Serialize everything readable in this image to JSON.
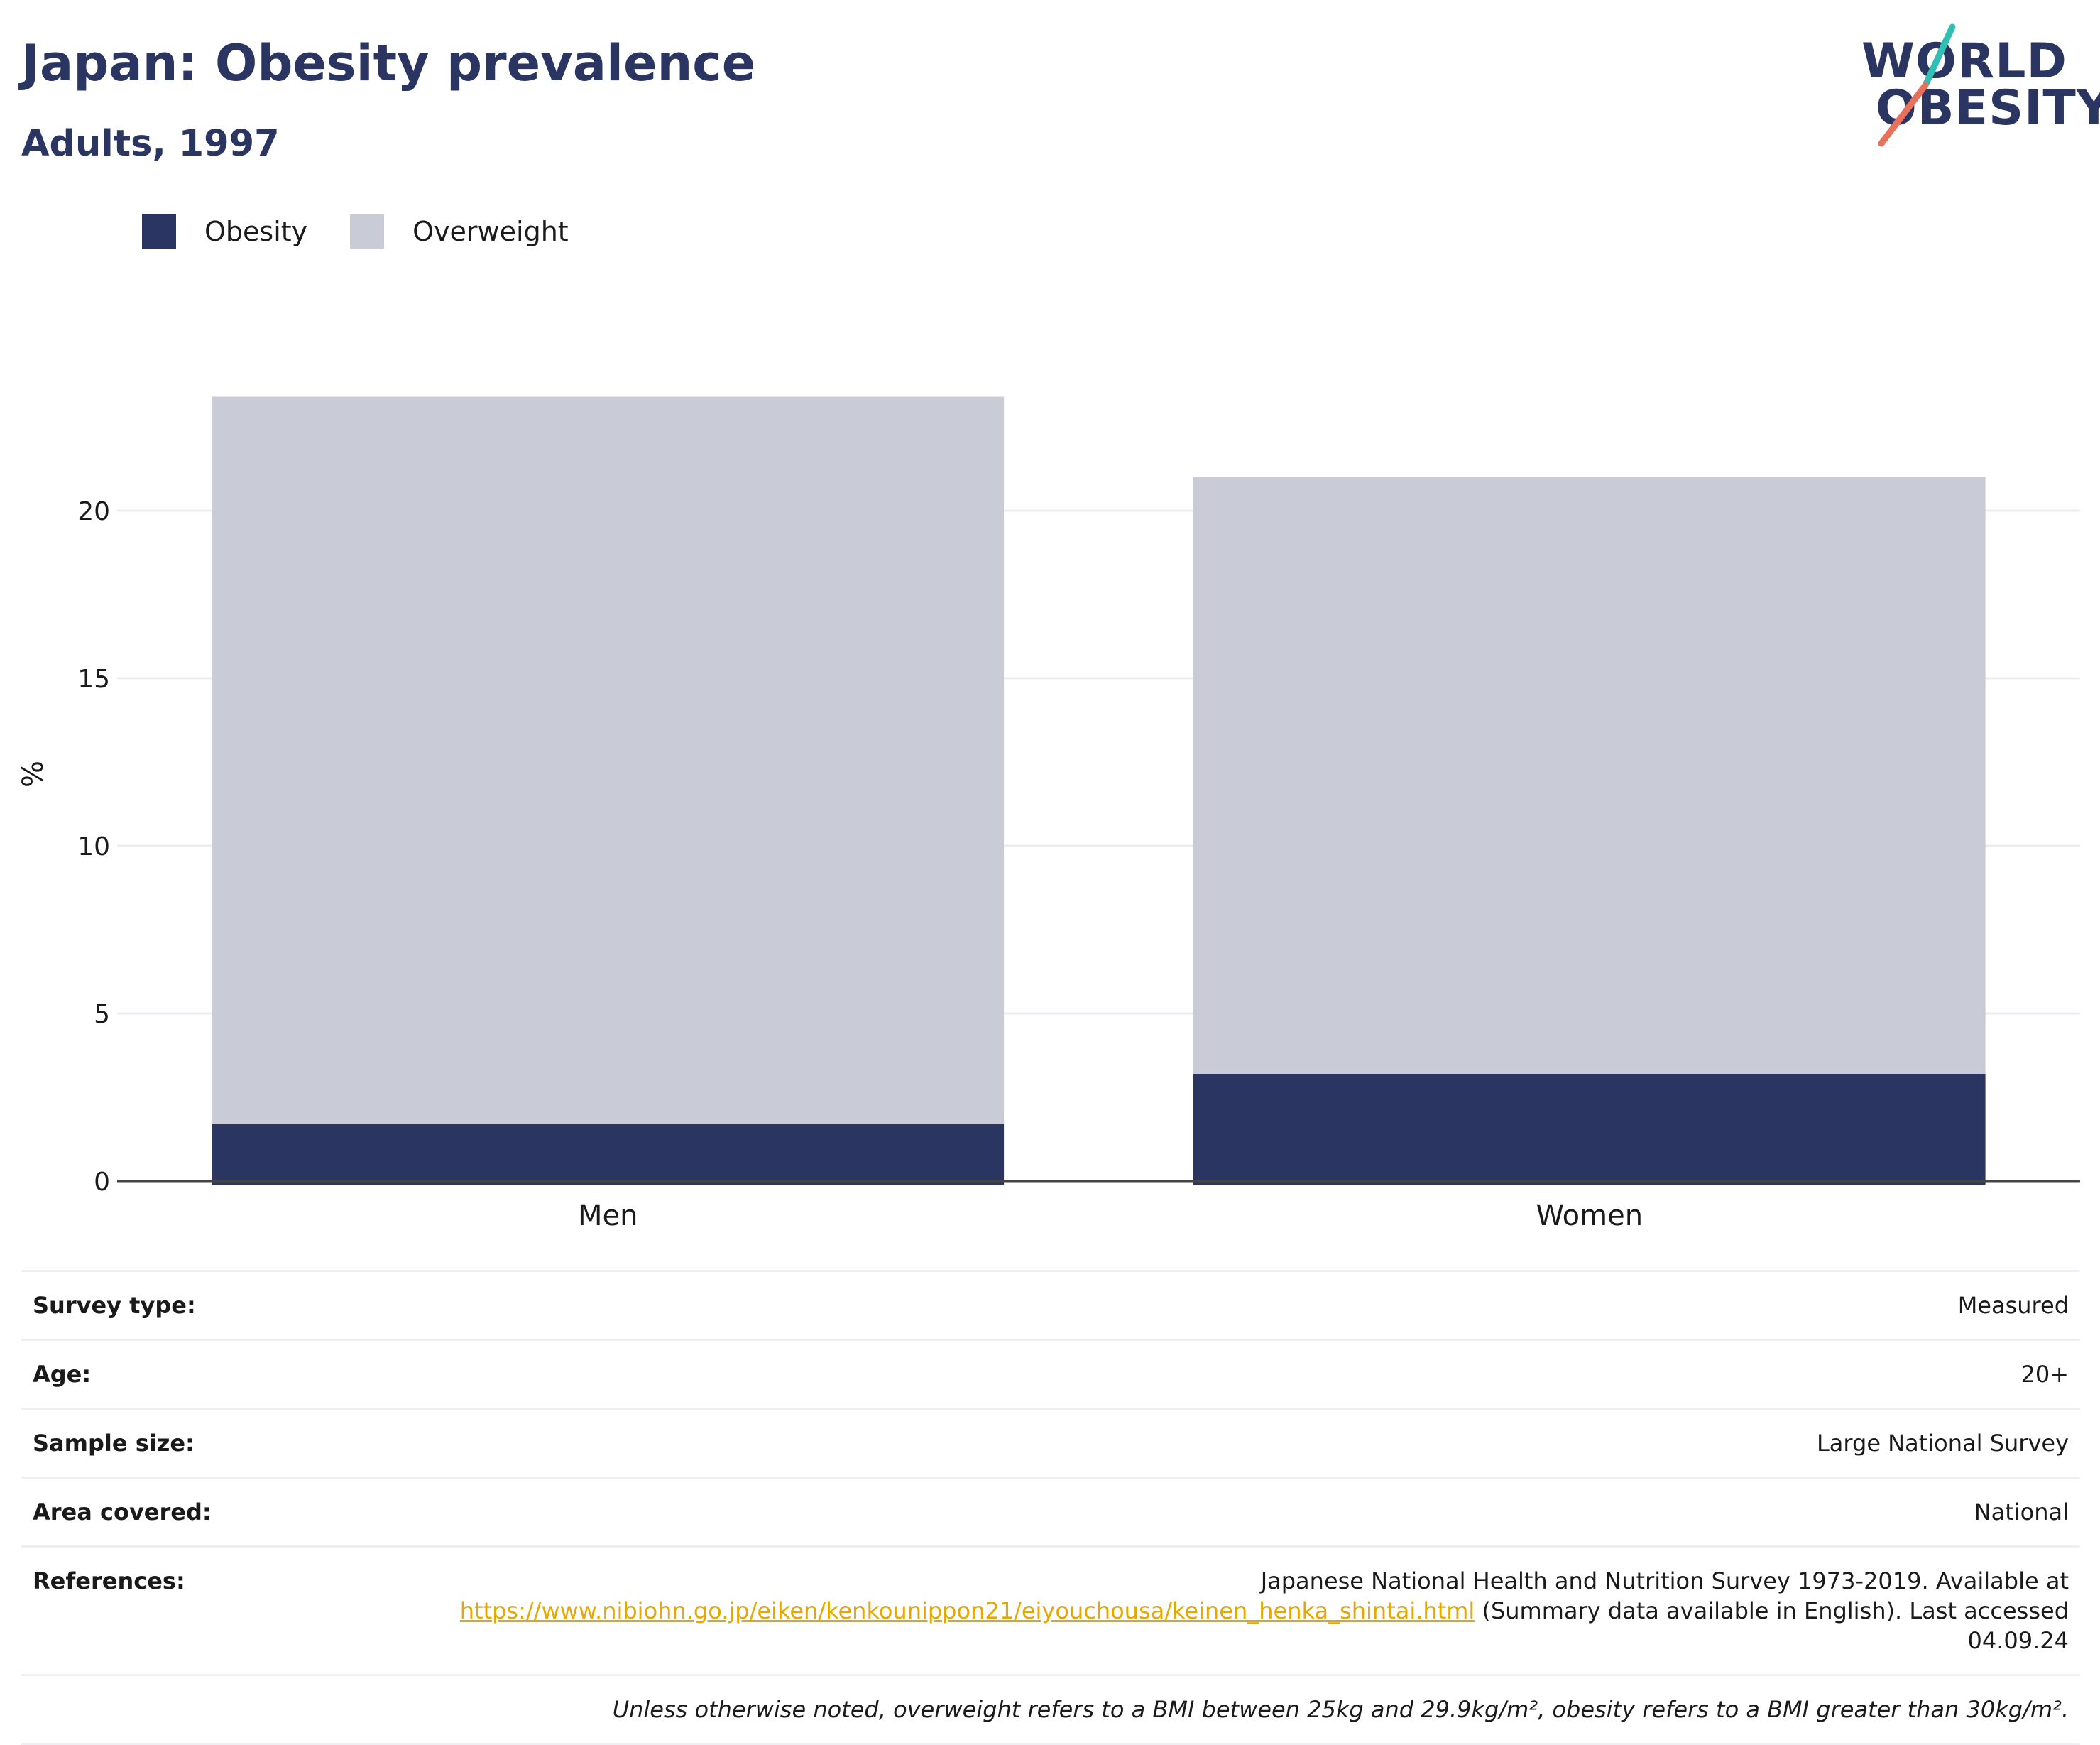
{
  "header": {
    "title": "Japan: Obesity prevalence",
    "subtitle": "Adults, 1997"
  },
  "logo": {
    "line1": "WORLD",
    "line2": "OBESITY",
    "color": "#2b3562",
    "slash_top_color": "#2fbfb3",
    "slash_bottom_color": "#e8715c"
  },
  "legend": [
    {
      "name": "Obesity",
      "color": "#2b3562"
    },
    {
      "name": "Overweight",
      "color": "#c9cbd6"
    }
  ],
  "chart_data": {
    "type": "bar",
    "stacked": true,
    "categories": [
      "Men",
      "Women"
    ],
    "series": [
      {
        "name": "Obesity",
        "values": [
          1.7,
          3.2
        ],
        "color": "#2b3562"
      },
      {
        "name": "Overweight",
        "values": [
          21.7,
          17.8
        ],
        "color": "#c9cbd6"
      }
    ],
    "ylabel": "%",
    "ylim": [
      0,
      25
    ],
    "yticks": [
      0,
      5,
      10,
      15,
      20
    ],
    "grid": true,
    "legend_position": "top-left"
  },
  "info": {
    "survey_type": {
      "label": "Survey type:",
      "value": "Measured"
    },
    "age": {
      "label": "Age:",
      "value": "20+"
    },
    "sample_size": {
      "label": "Sample size:",
      "value": "Large National Survey"
    },
    "area_covered": {
      "label": "Area covered:",
      "value": "National"
    },
    "references": {
      "label": "References:",
      "text_before": "Japanese National Health and Nutrition Survey 1973-2019. Available at",
      "link": "https://www.nibiohn.go.jp/eiken/kenkounippon21/eiyouchousa/keinen_henka_shintai.html",
      "text_after": "(Summary data available in English). Last accessed 04.09.24"
    },
    "footnote": "Unless otherwise noted, overweight refers to a BMI between 25kg and 29.9kg/m², obesity refers to a BMI greater than 30kg/m²."
  }
}
